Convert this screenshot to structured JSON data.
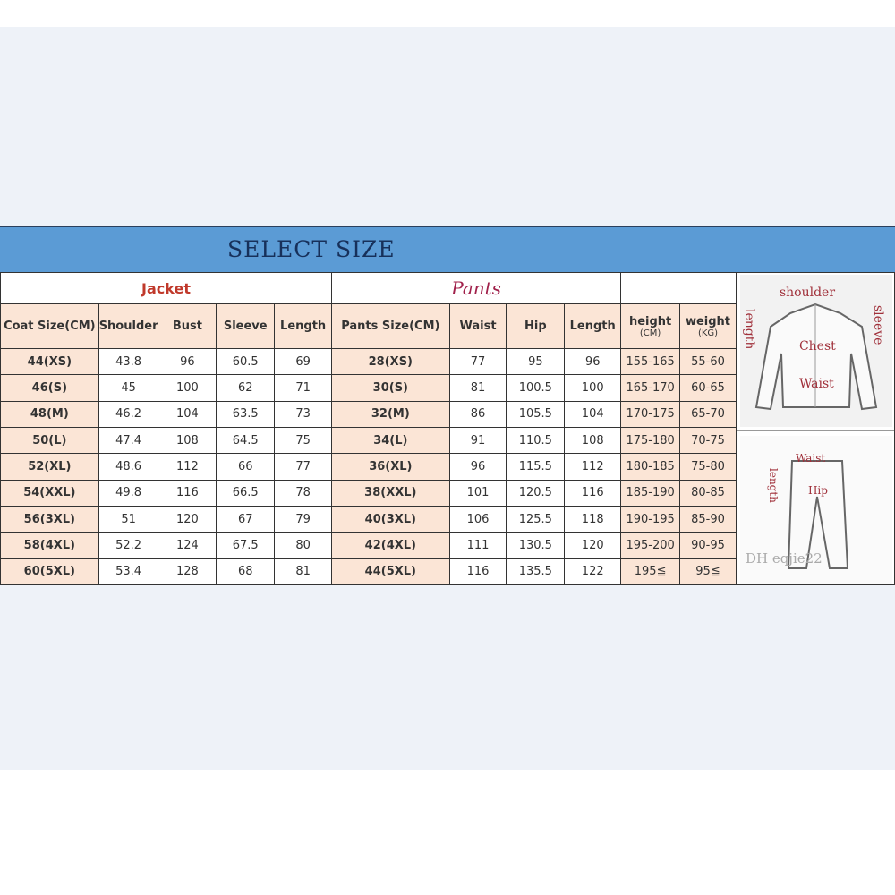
{
  "title": "SELECT SIZE",
  "groups": {
    "jacket": "Jacket",
    "pants": "Pants"
  },
  "headers": {
    "coat_size": "Coat Size(CM)",
    "shoulder": "Shoulder",
    "bust": "Bust",
    "sleeve": "Sleeve",
    "length": "Length",
    "pants_size": "Pants Size(CM)",
    "waist": "Waist",
    "hip": "Hip",
    "pants_length": "Length",
    "height": "height",
    "height_unit": "(CM)",
    "weight": "weight",
    "weight_unit": "(KG)"
  },
  "rows": [
    [
      "44(XS)",
      "43.8",
      "96",
      "60.5",
      "69",
      "28(XS)",
      "77",
      "95",
      "96",
      "155-165",
      "55-60"
    ],
    [
      "46(S)",
      "45",
      "100",
      "62",
      "71",
      "30(S)",
      "81",
      "100.5",
      "100",
      "165-170",
      "60-65"
    ],
    [
      "48(M)",
      "46.2",
      "104",
      "63.5",
      "73",
      "32(M)",
      "86",
      "105.5",
      "104",
      "170-175",
      "65-70"
    ],
    [
      "50(L)",
      "47.4",
      "108",
      "64.5",
      "75",
      "34(L)",
      "91",
      "110.5",
      "108",
      "175-180",
      "70-75"
    ],
    [
      "52(XL)",
      "48.6",
      "112",
      "66",
      "77",
      "36(XL)",
      "96",
      "115.5",
      "112",
      "180-185",
      "75-80"
    ],
    [
      "54(XXL)",
      "49.8",
      "116",
      "66.5",
      "78",
      "38(XXL)",
      "101",
      "120.5",
      "116",
      "185-190",
      "80-85"
    ],
    [
      "56(3XL)",
      "51",
      "120",
      "67",
      "79",
      "40(3XL)",
      "106",
      "125.5",
      "118",
      "190-195",
      "85-90"
    ],
    [
      "58(4XL)",
      "52.2",
      "124",
      "67.5",
      "80",
      "42(4XL)",
      "111",
      "130.5",
      "120",
      "195-200",
      "90-95"
    ],
    [
      "60(5XL)",
      "53.4",
      "128",
      "68",
      "81",
      "44(5XL)",
      "116",
      "135.5",
      "122",
      "195≦",
      "95≦"
    ]
  ],
  "diagram": {
    "jacket_labels": {
      "shoulder": "shoulder",
      "length": "length",
      "sleeve": "sleeve",
      "chest": "Chest",
      "waist": "Waist"
    },
    "pants_labels": {
      "waist": "Waist",
      "length": "length",
      "hip": "Hip"
    },
    "watermark": "DH eqjie22"
  }
}
